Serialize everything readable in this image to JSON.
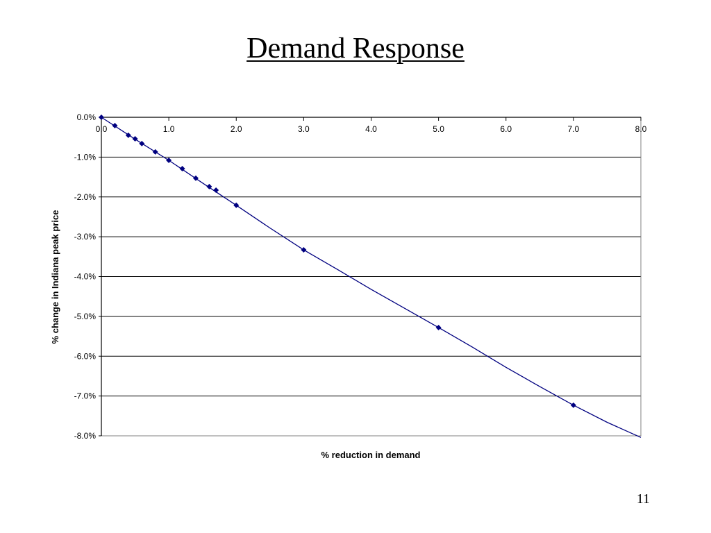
{
  "slide": {
    "title": "Demand Response",
    "page_number": "11"
  },
  "chart_data": {
    "type": "line",
    "title": "",
    "xlabel": "% reduction in demand",
    "ylabel": "% change in Indiana peak price",
    "xlim": [
      0,
      8
    ],
    "ylim": [
      -8.0,
      0.0
    ],
    "x_ticks": [
      "0.0",
      "1.0",
      "2.0",
      "3.0",
      "4.0",
      "5.0",
      "6.0",
      "7.0",
      "8.0"
    ],
    "y_ticks": [
      "0.0%",
      "-1.0%",
      "-2.0%",
      "-3.0%",
      "-4.0%",
      "-5.0%",
      "-6.0%",
      "-7.0%",
      "-8.0%"
    ],
    "grid": true,
    "colors": {
      "series": "#000080",
      "grid": "#000000",
      "axis": "#000000",
      "plot_border": "#808080"
    },
    "series": [
      {
        "name": "",
        "line_x": [
          0,
          0.5,
          1.0,
          1.5,
          2.0,
          2.5,
          3.0,
          3.5,
          4.0,
          4.5,
          5.0,
          5.5,
          6.0,
          6.5,
          7.0,
          7.5,
          8.0
        ],
        "line_y": [
          0,
          -0.55,
          -1.08,
          -1.65,
          -2.21,
          -2.78,
          -3.33,
          -3.82,
          -4.32,
          -4.8,
          -5.28,
          -5.77,
          -6.28,
          -6.76,
          -7.23,
          -7.66,
          -8.04
        ],
        "points": [
          {
            "x": 0.0,
            "y": 0.0
          },
          {
            "x": 0.2,
            "y": -0.21
          },
          {
            "x": 0.4,
            "y": -0.45
          },
          {
            "x": 0.5,
            "y": -0.54
          },
          {
            "x": 0.6,
            "y": -0.66
          },
          {
            "x": 0.8,
            "y": -0.87
          },
          {
            "x": 1.0,
            "y": -1.08
          },
          {
            "x": 1.2,
            "y": -1.29
          },
          {
            "x": 1.4,
            "y": -1.53
          },
          {
            "x": 1.6,
            "y": -1.74
          },
          {
            "x": 1.7,
            "y": -1.83
          },
          {
            "x": 2.0,
            "y": -2.21
          },
          {
            "x": 3.0,
            "y": -3.33
          },
          {
            "x": 5.0,
            "y": -5.28
          },
          {
            "x": 7.0,
            "y": -7.23
          }
        ]
      }
    ]
  }
}
